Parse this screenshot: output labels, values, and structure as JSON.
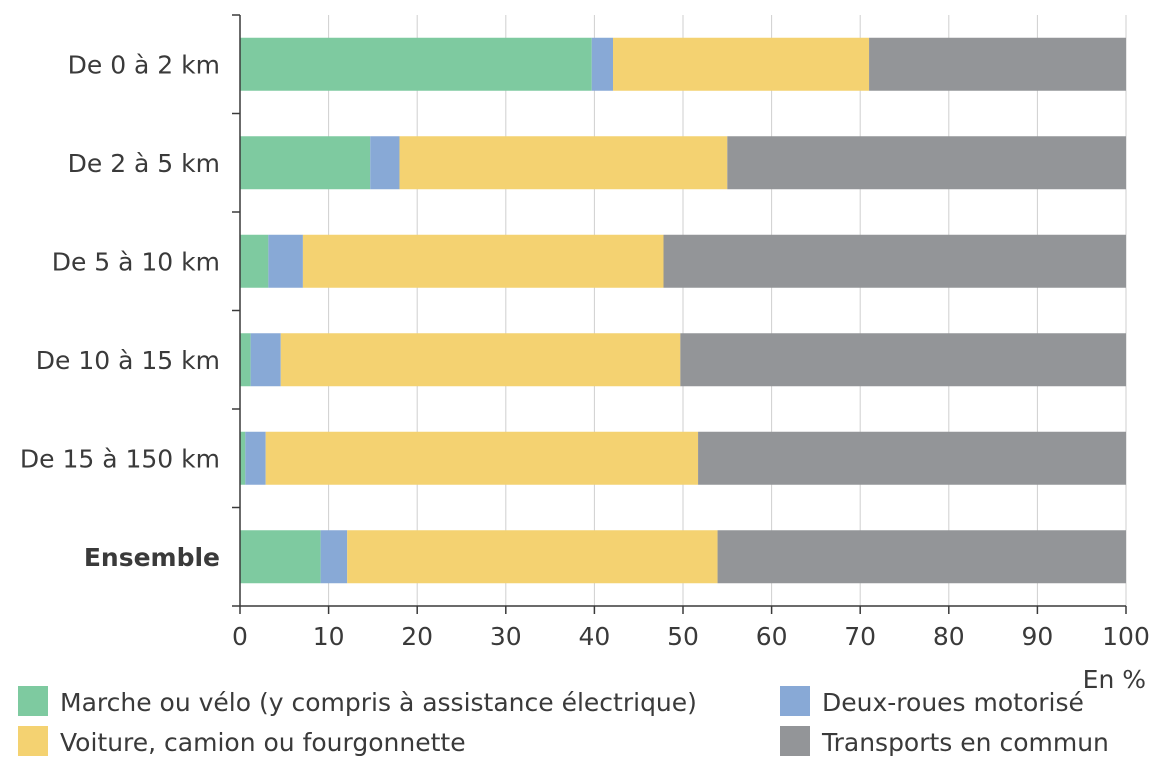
{
  "chart_data": {
    "type": "bar",
    "orientation": "horizontal",
    "stacked": true,
    "categories": [
      "De 0 à 2 km",
      "De 2 à 5 km",
      "De 5 à 10 km",
      "De 10 à 15 km",
      "De 15 à 150 km",
      "Ensemble"
    ],
    "bold_categories": [
      "Ensemble"
    ],
    "series": [
      {
        "name": "Marche ou vélo (y compris à assistance électrique)",
        "color": "#7ecaa0",
        "values": [
          39.7,
          14.7,
          3.2,
          1.2,
          0.6,
          9.1
        ]
      },
      {
        "name": "Deux-roues motorisé",
        "color": "#88a9d6",
        "values": [
          2.4,
          3.3,
          3.9,
          3.4,
          2.3,
          3.0
        ]
      },
      {
        "name": "Voiture, camion ou fourgonnette",
        "color": "#f4d271",
        "values": [
          28.9,
          37.0,
          40.7,
          45.1,
          48.8,
          41.8
        ]
      },
      {
        "name": "Transports en commun",
        "color": "#939598",
        "values": [
          29.0,
          45.0,
          52.2,
          50.3,
          48.3,
          46.1
        ]
      }
    ],
    "xlim": [
      0,
      100
    ],
    "xticks": [
      0,
      10,
      20,
      30,
      40,
      50,
      60,
      70,
      80,
      90,
      100
    ],
    "xunit": "En %",
    "grid": "vertical",
    "legend_position": "bottom"
  }
}
